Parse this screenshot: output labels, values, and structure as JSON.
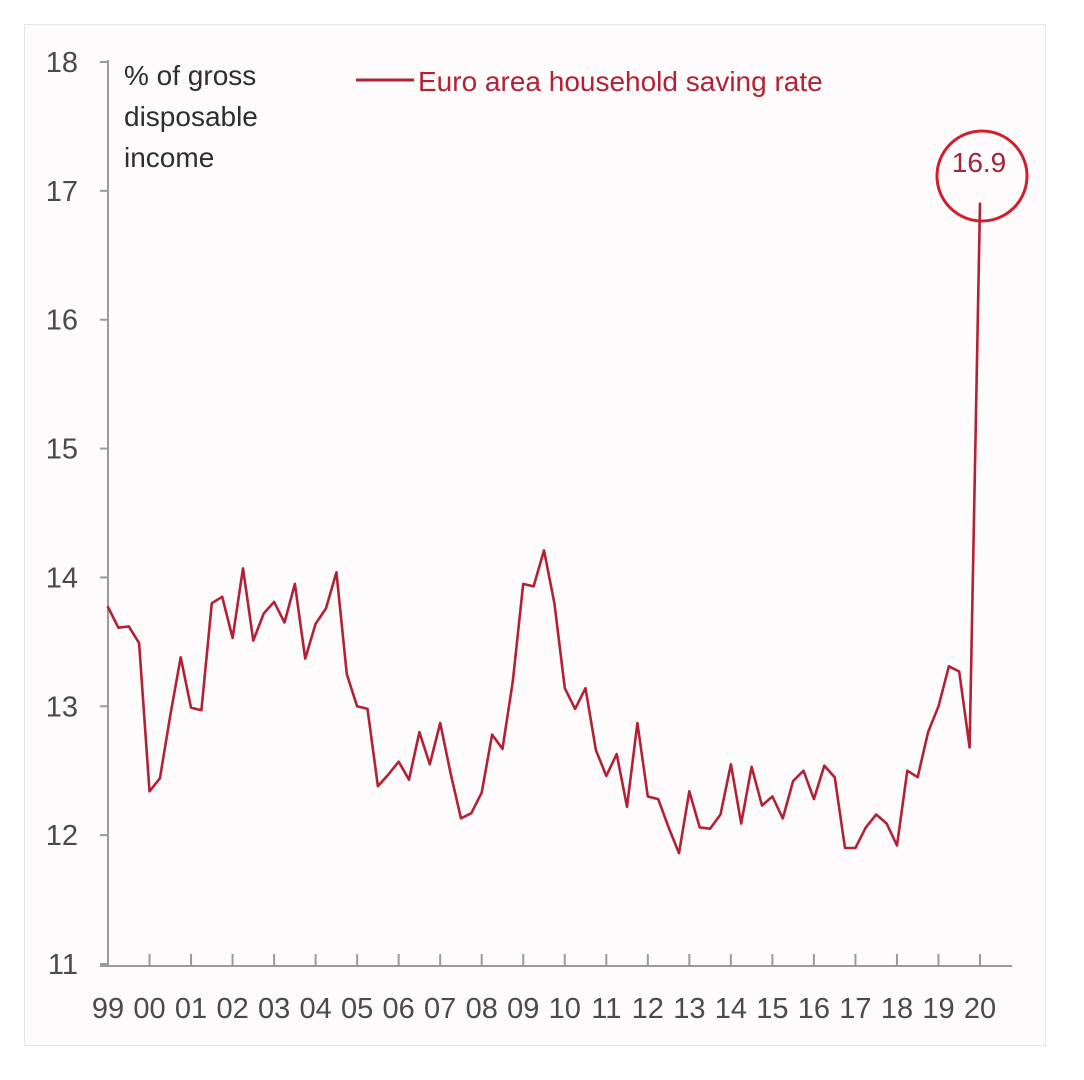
{
  "chart_data": {
    "type": "line",
    "ylabel": "% of gross disposable income",
    "ylabel_lines": [
      "% of gross",
      "disposable",
      "income"
    ],
    "ylim": [
      11,
      18
    ],
    "yticks": [
      "11",
      "12",
      "13",
      "14",
      "15",
      "16",
      "17",
      "18"
    ],
    "xticks": [
      "99",
      "00",
      "01",
      "02",
      "03",
      "04",
      "05",
      "06",
      "07",
      "08",
      "09",
      "10",
      "11",
      "12",
      "13",
      "14",
      "15",
      "16",
      "17",
      "18",
      "19",
      "20"
    ],
    "grid": false,
    "legend_position": "top",
    "series": [
      {
        "name": "Euro area household saving rate",
        "color": "#b22234",
        "x": [
          1999.0,
          1999.25,
          1999.5,
          1999.75,
          2000.0,
          2000.25,
          2000.5,
          2000.75,
          2001.0,
          2001.25,
          2001.5,
          2001.75,
          2002.0,
          2002.25,
          2002.5,
          2002.75,
          2003.0,
          2003.25,
          2003.5,
          2003.75,
          2004.0,
          2004.25,
          2004.5,
          2004.75,
          2005.0,
          2005.25,
          2005.5,
          2005.75,
          2006.0,
          2006.25,
          2006.5,
          2006.75,
          2007.0,
          2007.25,
          2007.5,
          2007.75,
          2008.0,
          2008.25,
          2008.5,
          2008.75,
          2009.0,
          2009.25,
          2009.5,
          2009.75,
          2010.0,
          2010.25,
          2010.5,
          2010.75,
          2011.0,
          2011.25,
          2011.5,
          2011.75,
          2012.0,
          2012.25,
          2012.5,
          2012.75,
          2013.0,
          2013.25,
          2013.5,
          2013.75,
          2014.0,
          2014.25,
          2014.5,
          2014.75,
          2015.0,
          2015.25,
          2015.5,
          2015.75,
          2016.0,
          2016.25,
          2016.5,
          2016.75,
          2017.0,
          2017.25,
          2017.5,
          2017.75,
          2018.0,
          2018.25,
          2018.5,
          2018.75,
          2019.0,
          2019.25,
          2019.5,
          2019.75,
          2020.0
        ],
        "values": [
          13.77,
          13.61,
          13.62,
          13.49,
          12.34,
          12.44,
          12.93,
          13.38,
          12.99,
          12.97,
          13.8,
          13.85,
          13.53,
          14.07,
          13.51,
          13.72,
          13.81,
          13.65,
          13.95,
          13.37,
          13.64,
          13.76,
          14.04,
          13.25,
          13.0,
          12.98,
          12.38,
          12.47,
          12.57,
          12.43,
          12.8,
          12.55,
          12.87,
          12.48,
          12.13,
          12.17,
          12.33,
          12.78,
          12.67,
          13.2,
          13.95,
          13.93,
          14.21,
          13.8,
          13.14,
          12.98,
          13.14,
          12.66,
          12.46,
          12.63,
          12.22,
          12.87,
          12.3,
          12.28,
          12.06,
          11.86,
          12.34,
          12.06,
          12.05,
          12.16,
          12.55,
          12.09,
          12.53,
          12.23,
          12.3,
          12.13,
          12.42,
          12.5,
          12.28,
          12.54,
          12.45,
          11.9,
          11.9,
          12.06,
          12.16,
          12.09,
          11.92,
          12.5,
          12.45,
          12.8,
          13.0,
          13.31,
          13.27,
          12.68,
          16.9
        ]
      }
    ],
    "annotations": [
      {
        "text": "16.9",
        "x": 2020.0,
        "y": 16.9,
        "circled": true
      }
    ]
  }
}
